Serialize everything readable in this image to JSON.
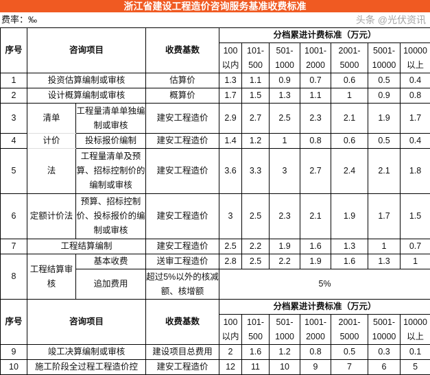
{
  "title": "浙江省建设工程造价咨询服务基准收费标准",
  "rate_label": "费率：‰",
  "header": {
    "no": "序号",
    "item": "咨询项目",
    "base": "收费基数",
    "tiers_title": "分档累进计费标准（万元）",
    "tiers": [
      "100以内",
      "101-500",
      "501-1000",
      "1001-2000",
      "2001-5000",
      "5001-10000",
      "10000以上"
    ]
  },
  "rows": [
    {
      "no": "1",
      "item": "投资估算编制或审核",
      "base": "估算价",
      "values": [
        "1.3",
        "1.1",
        "0.9",
        "0.7",
        "0.6",
        "0.5",
        "0.4"
      ]
    },
    {
      "no": "2",
      "item": "设计概算编制或审核",
      "base": "概算价",
      "values": [
        "1.7",
        "1.5",
        "1.3",
        "1.1",
        "1",
        "0.9",
        "0.8"
      ]
    },
    {
      "no": "3",
      "group": "清单",
      "item": "工程量清单单独编制或审核",
      "base": "建安工程造价",
      "values": [
        "2.9",
        "2.7",
        "2.5",
        "2.3",
        "2.1",
        "1.9",
        "1.7"
      ]
    },
    {
      "no": "4",
      "group": "计价",
      "item": "投标报价编制",
      "base": "建安工程造价",
      "values": [
        "1.4",
        "1.2",
        "1",
        "0.8",
        "0.6",
        "0.5",
        "0.4"
      ]
    },
    {
      "no": "5",
      "group": "法",
      "item": "工程量清单及预算、招标控制价的编制或审核",
      "base": "建安工程造价",
      "values": [
        "3.6",
        "3.3",
        "3",
        "2.7",
        "2.4",
        "2.1",
        "1.8"
      ]
    },
    {
      "no": "6",
      "group": "定额计价法",
      "item": "预算、招标控制价、投标报价的编制或审核",
      "base": "建安工程造价",
      "values": [
        "3",
        "2.5",
        "2.3",
        "2.1",
        "1.9",
        "1.7",
        "1.5"
      ]
    },
    {
      "no": "7",
      "item": "工程结算编制",
      "base": "建安工程造价",
      "values": [
        "2.5",
        "2.2",
        "1.9",
        "1.6",
        "1.3",
        "1",
        "0.7"
      ]
    },
    {
      "no": "8",
      "group": "工程结算审核",
      "item": "基本收费",
      "base": "送审工程造价",
      "values": [
        "2.8",
        "2.5",
        "2.2",
        "1.9",
        "1.6",
        "1.3",
        "1"
      ]
    },
    {
      "item": "追加费用",
      "base": "超过5%以外的核减额、核增额",
      "merged_value": "5%"
    }
  ],
  "rows2": [
    {
      "no": "9",
      "item": "竣工决算编制或审核",
      "base": "建设项目总费用",
      "values": [
        "2",
        "1.6",
        "1.2",
        "0.8",
        "0.5",
        "0.3",
        "0.1"
      ]
    },
    {
      "no": "10",
      "item": "施工阶段全过程工程造价控",
      "base": "建安工程造价",
      "values": [
        "12",
        "11",
        "10",
        "9",
        "7",
        "6",
        "5"
      ]
    }
  ],
  "watermark": "头条 @光伏资讯"
}
